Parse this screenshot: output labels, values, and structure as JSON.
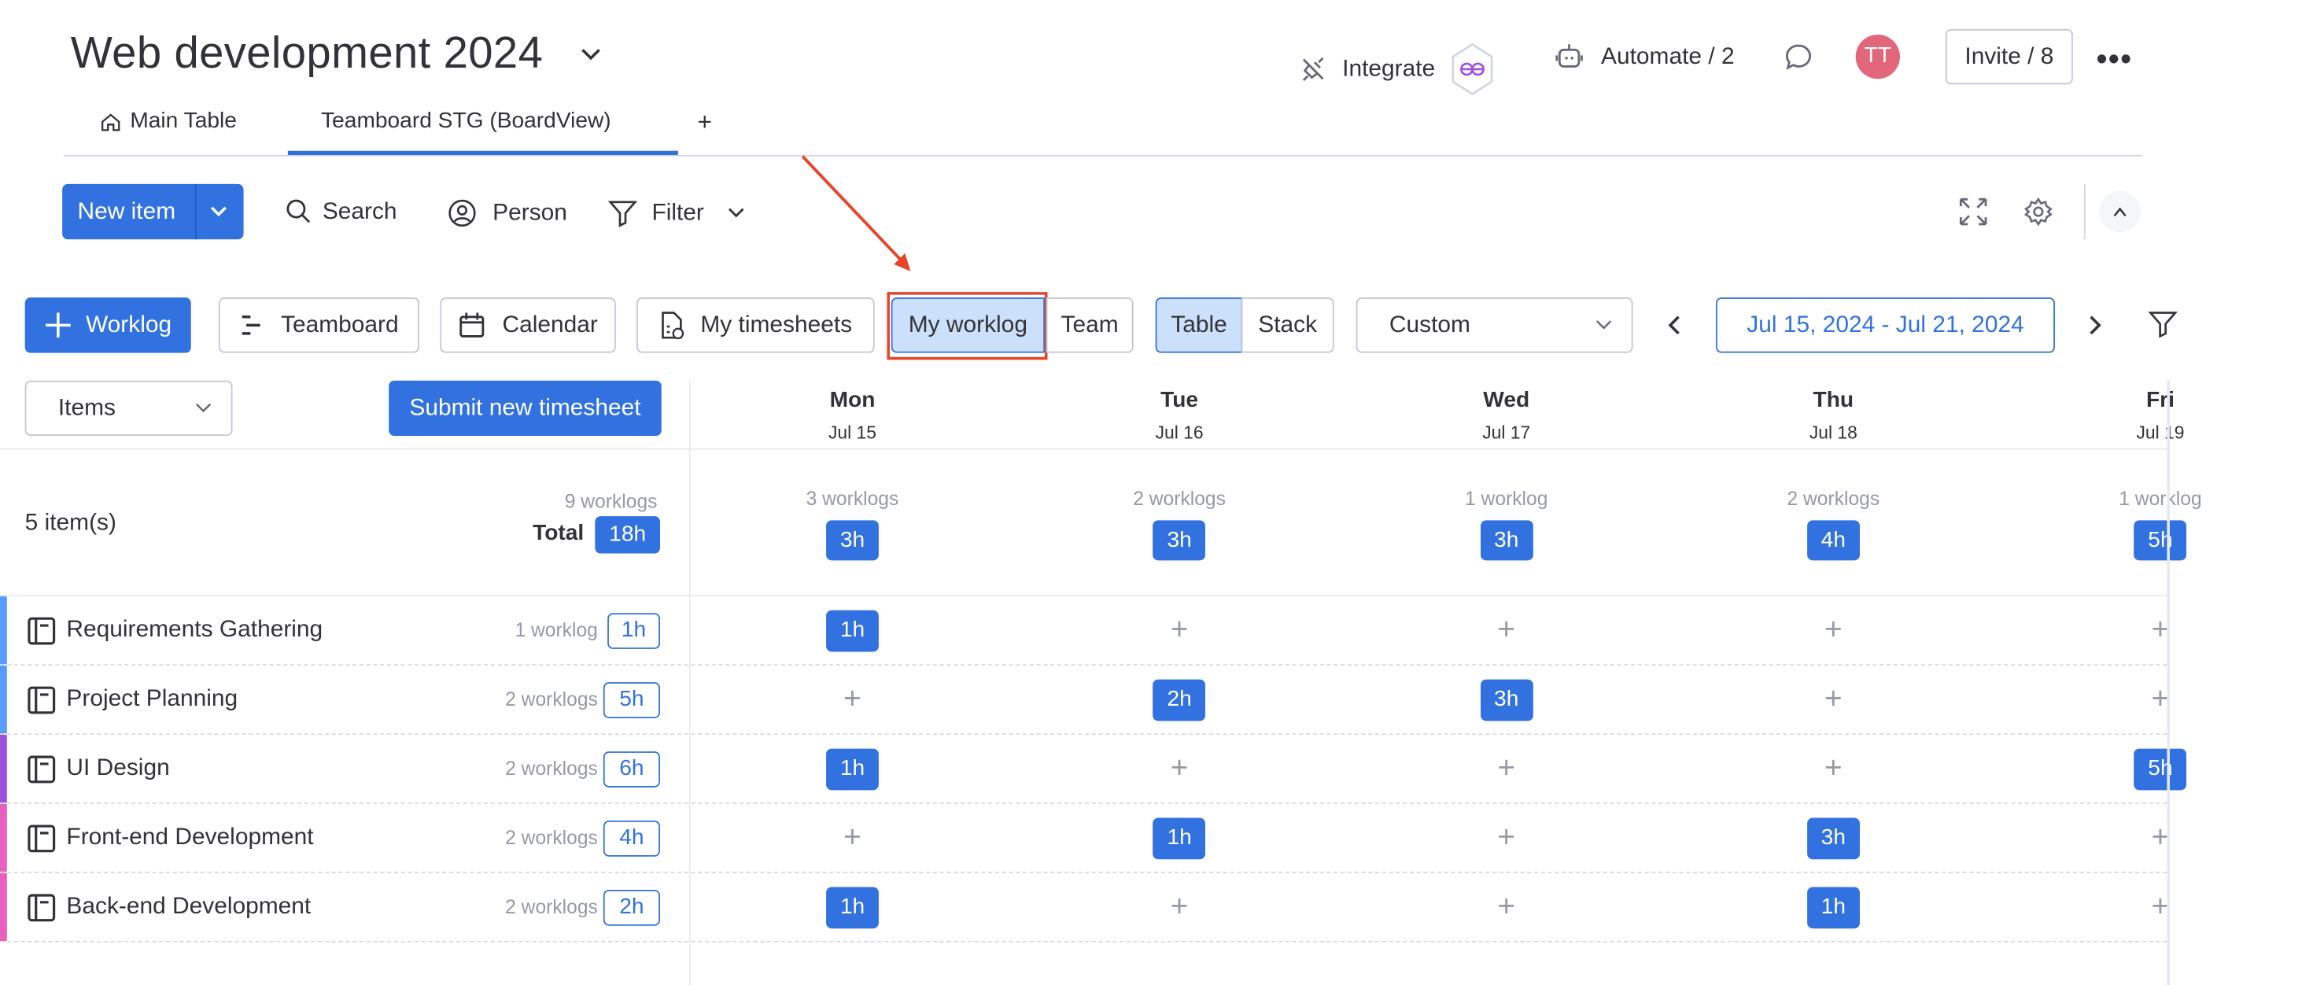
{
  "header": {
    "title": "Web development 2024",
    "integrate": "Integrate",
    "automate": "Automate / 2",
    "avatar_initials": "TT",
    "avatar_color": "#e2677a",
    "invite": "Invite / 8"
  },
  "tabs": [
    {
      "label": "Main Table",
      "icon": "home-icon"
    },
    {
      "label": "Teamboard STG (BoardView)",
      "active": true
    },
    {
      "label": "+"
    }
  ],
  "toolbar": {
    "new_item": "New item",
    "search": "Search",
    "person": "Person",
    "filter": "Filter"
  },
  "view_bar": {
    "worklog": "Worklog",
    "teamboard": "Teamboard",
    "calendar": "Calendar",
    "my_timesheets": "My timesheets",
    "my_worklog": "My worklog",
    "team": "Team",
    "table": "Table",
    "stack": "Stack",
    "range_select": "Custom",
    "date_range": "Jul 15, 2024 - Jul 21, 2024"
  },
  "grid_controls": {
    "group_select": "Items",
    "submit": "Submit new timesheet"
  },
  "accent": "#3171e0",
  "days": [
    {
      "name": "Mon",
      "date": "Jul 15",
      "worklogs": "3 worklogs",
      "total": "3h"
    },
    {
      "name": "Tue",
      "date": "Jul 16",
      "worklogs": "2 worklogs",
      "total": "3h"
    },
    {
      "name": "Wed",
      "date": "Jul 17",
      "worklogs": "1 worklog",
      "total": "3h"
    },
    {
      "name": "Thu",
      "date": "Jul 18",
      "worklogs": "2 worklogs",
      "total": "4h"
    },
    {
      "name": "Fri",
      "date": "Jul 19",
      "worklogs": "1 worklog",
      "total": "5h"
    }
  ],
  "summary": {
    "items": "5 item(s)",
    "worklogs": "9 worklogs",
    "total_label": "Total",
    "total": "18h"
  },
  "items": [
    {
      "name": "Requirements Gathering",
      "worklogs": "1 worklog",
      "total": "1h",
      "color": "#579bfc",
      "cells": [
        "1h",
        "",
        "",
        "",
        ""
      ]
    },
    {
      "name": "Project Planning",
      "worklogs": "2 worklogs",
      "total": "5h",
      "color": "#579bfc",
      "cells": [
        "",
        "2h",
        "3h",
        "",
        ""
      ]
    },
    {
      "name": "UI Design",
      "worklogs": "2 worklogs",
      "total": "6h",
      "color": "#9d50dd",
      "cells": [
        "1h",
        "",
        "",
        "",
        "5h"
      ]
    },
    {
      "name": "Front-end Development",
      "worklogs": "2 worklogs",
      "total": "4h",
      "color": "#e95fc0",
      "cells": [
        "",
        "1h",
        "",
        "3h",
        ""
      ]
    },
    {
      "name": "Back-end Development",
      "worklogs": "2 worklogs",
      "total": "2h",
      "color": "#e95fc0",
      "cells": [
        "1h",
        "",
        "",
        "1h",
        ""
      ]
    }
  ]
}
